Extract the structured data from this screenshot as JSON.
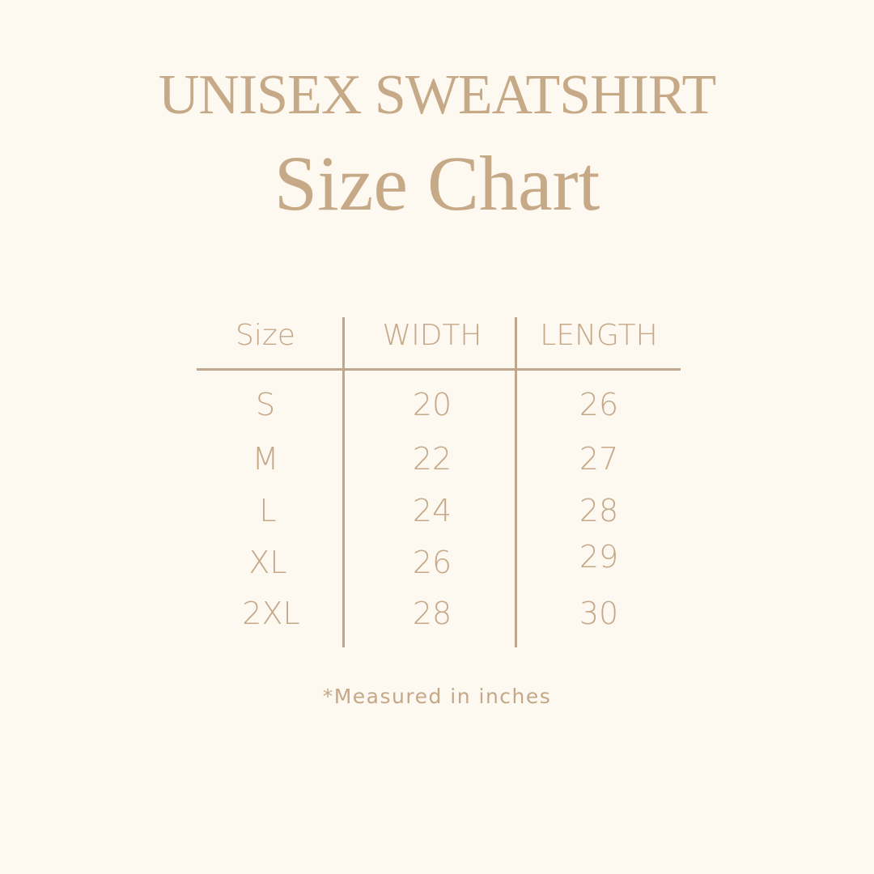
{
  "header": {
    "title": "UNISEX SWEATSHIRT",
    "subtitle": "Size Chart"
  },
  "table": {
    "columns": [
      "Size",
      "WIDTH",
      "LENGTH"
    ],
    "rows": [
      {
        "size": "S",
        "width": "20",
        "length": "26"
      },
      {
        "size": "M",
        "width": "22",
        "length": "27"
      },
      {
        "size": "L",
        "width": "24",
        "length": "28"
      },
      {
        "size": "XL",
        "width": "26",
        "length": "29"
      },
      {
        "size": "2XL",
        "width": "28",
        "length": "30"
      }
    ]
  },
  "footnote": "*Measured in inches",
  "colors": {
    "background": "#fdf8f0",
    "text": "#c4a888",
    "rule": "#bfa78e"
  }
}
